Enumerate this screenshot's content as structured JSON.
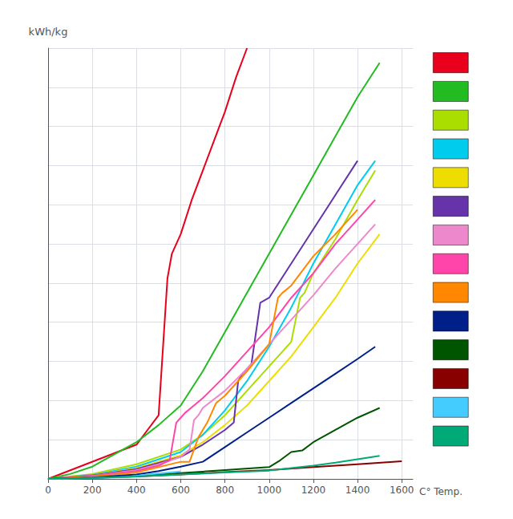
{
  "chart_data": {
    "type": "line",
    "ylabel": "kWh/kg",
    "xlabel": "C° Temp.",
    "xlim": [
      0,
      1650
    ],
    "ylim": [
      0,
      0.88
    ],
    "xticks": [
      0,
      200,
      400,
      600,
      800,
      1000,
      1200,
      1400,
      1600
    ],
    "yticks": [
      0,
      0.08,
      0.16,
      0.24,
      0.32,
      0.4,
      0.48,
      0.56,
      0.64,
      0.72,
      0.8,
      0.88
    ],
    "grid": true,
    "tick_labels": "x",
    "legend": "right",
    "series": [
      {
        "color": "#e8001c",
        "x": [
          0,
          400,
          450,
          500,
          540,
          560,
          600,
          650,
          700,
          750,
          800,
          850,
          900
        ],
        "values": [
          0,
          0.07,
          0.1,
          0.13,
          0.41,
          0.46,
          0.5,
          0.57,
          0.63,
          0.69,
          0.75,
          0.82,
          0.88
        ]
      },
      {
        "color": "#22bb22",
        "x": [
          0,
          100,
          200,
          300,
          400,
          500,
          600,
          700,
          800,
          900,
          1000,
          1100,
          1200,
          1300,
          1400,
          1500
        ],
        "values": [
          0,
          0.01,
          0.025,
          0.05,
          0.075,
          0.11,
          0.15,
          0.22,
          0.3,
          0.38,
          0.46,
          0.54,
          0.62,
          0.7,
          0.78,
          0.85
        ]
      },
      {
        "color": "#aadd00",
        "x": [
          0,
          200,
          400,
          600,
          700,
          800,
          900,
          1000,
          1100,
          1140,
          1160,
          1200,
          1300,
          1400,
          1480
        ],
        "values": [
          0,
          0.01,
          0.03,
          0.06,
          0.09,
          0.13,
          0.18,
          0.23,
          0.28,
          0.37,
          0.38,
          0.42,
          0.49,
          0.57,
          0.63
        ]
      },
      {
        "color": "#00ccee",
        "x": [
          0,
          200,
          400,
          600,
          700,
          800,
          900,
          1000,
          1100,
          1200,
          1300,
          1400,
          1480
        ],
        "values": [
          0,
          0.008,
          0.025,
          0.055,
          0.09,
          0.14,
          0.2,
          0.27,
          0.35,
          0.44,
          0.52,
          0.6,
          0.65
        ]
      },
      {
        "color": "#eedd00",
        "x": [
          0,
          200,
          400,
          600,
          700,
          800,
          900,
          1000,
          1100,
          1200,
          1300,
          1400,
          1500
        ],
        "values": [
          0,
          0.007,
          0.022,
          0.048,
          0.075,
          0.11,
          0.15,
          0.2,
          0.25,
          0.31,
          0.37,
          0.44,
          0.5
        ]
      },
      {
        "color": "#6633aa",
        "x": [
          0,
          200,
          400,
          600,
          700,
          800,
          840,
          860,
          880,
          920,
          960,
          1000,
          1100,
          1200,
          1300,
          1400
        ],
        "values": [
          0,
          0.007,
          0.02,
          0.045,
          0.07,
          0.1,
          0.115,
          0.2,
          0.215,
          0.235,
          0.36,
          0.37,
          0.44,
          0.51,
          0.58,
          0.65
        ]
      },
      {
        "color": "#ee88cc",
        "x": [
          0,
          200,
          400,
          500,
          600,
          640,
          660,
          680,
          700,
          800,
          900,
          1000,
          1100,
          1200,
          1300,
          1400,
          1480
        ],
        "values": [
          0,
          0.006,
          0.018,
          0.03,
          0.045,
          0.06,
          0.12,
          0.13,
          0.145,
          0.18,
          0.225,
          0.275,
          0.325,
          0.375,
          0.43,
          0.48,
          0.52
        ]
      },
      {
        "color": "#ff44aa",
        "x": [
          0,
          200,
          400,
          500,
          550,
          580,
          600,
          620,
          700,
          800,
          900,
          1000,
          1100,
          1200,
          1300,
          1400,
          1480
        ],
        "values": [
          0,
          0.006,
          0.016,
          0.027,
          0.038,
          0.115,
          0.125,
          0.135,
          0.165,
          0.21,
          0.26,
          0.31,
          0.37,
          0.42,
          0.48,
          0.53,
          0.57
        ]
      },
      {
        "color": "#ff8800",
        "x": [
          0,
          200,
          400,
          600,
          640,
          680,
          720,
          760,
          800,
          900,
          1000,
          1040,
          1060,
          1100,
          1200,
          1300,
          1400
        ],
        "values": [
          0,
          0.005,
          0.013,
          0.035,
          0.035,
          0.085,
          0.115,
          0.155,
          0.17,
          0.22,
          0.275,
          0.37,
          0.38,
          0.395,
          0.455,
          0.5,
          0.55
        ]
      },
      {
        "color": "#001f88",
        "x": [
          0,
          200,
          400,
          500,
          600,
          700,
          800,
          900,
          1000,
          1100,
          1200,
          1300,
          1400,
          1480
        ],
        "values": [
          0,
          0.003,
          0.009,
          0.016,
          0.025,
          0.035,
          0.065,
          0.095,
          0.125,
          0.155,
          0.185,
          0.215,
          0.245,
          0.27
        ]
      },
      {
        "color": "#005500",
        "x": [
          0,
          200,
          400,
          600,
          800,
          1000,
          1050,
          1100,
          1150,
          1200,
          1300,
          1400,
          1500
        ],
        "values": [
          0,
          0.002,
          0.006,
          0.012,
          0.018,
          0.024,
          0.038,
          0.055,
          0.058,
          0.075,
          0.1,
          0.125,
          0.145
        ]
      },
      {
        "color": "#880000",
        "x": [
          0,
          200,
          400,
          600,
          800,
          1000,
          1200,
          1400,
          1600
        ],
        "values": [
          0,
          0.002,
          0.005,
          0.009,
          0.014,
          0.018,
          0.024,
          0.03,
          0.036
        ]
      },
      {
        "color": "#44ccff",
        "x": [
          0,
          100,
          200,
          300,
          350,
          400,
          450,
          500,
          550,
          600
        ],
        "values": [
          0,
          0.001,
          0.002,
          0.003,
          0.004,
          0.006,
          0.009,
          0.011,
          0.013,
          0.015
        ]
      },
      {
        "color": "#00aa77",
        "x": [
          0,
          200,
          400,
          600,
          800,
          1000,
          1100,
          1200,
          1300,
          1400,
          1500
        ],
        "values": [
          0,
          0.002,
          0.005,
          0.009,
          0.013,
          0.017,
          0.022,
          0.027,
          0.033,
          0.04,
          0.047
        ]
      }
    ]
  }
}
